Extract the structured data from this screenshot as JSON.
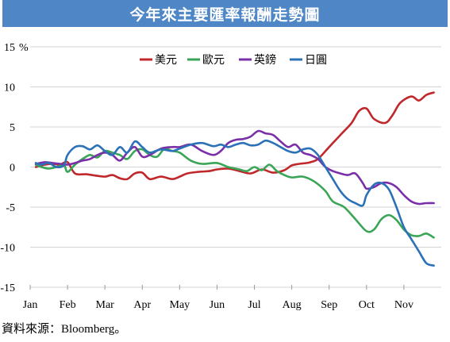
{
  "chart_data": {
    "type": "line",
    "title": "今年來主要匯率報酬走勢圖",
    "ylabel_unit": "%",
    "ylim": [
      -15,
      15
    ],
    "yticks": [
      15,
      10,
      5,
      0,
      -5,
      -10,
      -15
    ],
    "xlim": [
      0,
      11
    ],
    "categories": [
      "Jan",
      "Feb",
      "Mar",
      "Apr",
      "May",
      "Jun",
      "Jul",
      "Aug",
      "Sep",
      "Oct",
      "Nov"
    ],
    "grid": "horizontal",
    "legend_position": "top",
    "series": [
      {
        "name": "美元",
        "color": "#c0282c",
        "x": [
          0.15,
          0.4,
          0.6,
          0.8,
          1.0,
          1.2,
          1.5,
          1.8,
          2.0,
          2.2,
          2.4,
          2.6,
          2.8,
          3.0,
          3.2,
          3.5,
          3.8,
          4.0,
          4.2,
          4.5,
          4.8,
          5.0,
          5.3,
          5.6,
          5.9,
          6.2,
          6.5,
          6.8,
          7.0,
          7.2,
          7.4,
          7.5,
          7.7,
          8.0,
          8.3,
          8.6,
          8.8,
          9.0,
          9.2,
          9.5,
          9.7,
          9.9,
          10.2,
          10.4,
          10.6,
          10.8
        ],
        "values": [
          0.0,
          0.3,
          0.4,
          0.3,
          0.6,
          -0.8,
          -0.9,
          -1.1,
          -1.2,
          -1.0,
          -1.4,
          -1.5,
          -0.8,
          -0.7,
          -1.5,
          -1.2,
          -1.5,
          -1.2,
          -0.8,
          -0.6,
          -0.5,
          -0.3,
          -0.2,
          -0.5,
          -0.8,
          -0.3,
          -0.7,
          -0.4,
          0.2,
          0.4,
          0.5,
          0.6,
          1.0,
          2.5,
          4.0,
          5.5,
          7.0,
          7.3,
          6.0,
          5.5,
          6.5,
          8.0,
          8.8,
          8.3,
          9.0,
          9.3
        ]
      },
      {
        "name": "歐元",
        "color": "#3aa557",
        "x": [
          0.15,
          0.3,
          0.5,
          0.7,
          0.9,
          1.0,
          1.2,
          1.4,
          1.6,
          1.8,
          2.0,
          2.2,
          2.4,
          2.6,
          2.8,
          3.0,
          3.2,
          3.4,
          3.6,
          3.8,
          4.0,
          4.3,
          4.6,
          5.0,
          5.3,
          5.6,
          5.8,
          6.0,
          6.2,
          6.4,
          6.6,
          6.8,
          7.0,
          7.3,
          7.6,
          7.9,
          8.1,
          8.4,
          8.7,
          9.0,
          9.2,
          9.4,
          9.6,
          9.8,
          10.0,
          10.2,
          10.4,
          10.6,
          10.8
        ],
        "values": [
          0.3,
          0.0,
          -0.2,
          0.0,
          0.3,
          -0.6,
          0.3,
          1.0,
          1.5,
          1.2,
          2.0,
          1.8,
          1.5,
          1.0,
          2.0,
          2.2,
          1.5,
          1.3,
          2.3,
          2.0,
          1.8,
          0.8,
          0.4,
          0.5,
          0.0,
          -0.3,
          -0.5,
          0.0,
          -0.4,
          0.3,
          -0.5,
          -1.0,
          -1.3,
          -1.2,
          -1.8,
          -3.0,
          -4.3,
          -5.0,
          -6.5,
          -8.0,
          -7.8,
          -6.5,
          -6.0,
          -6.6,
          -7.8,
          -8.5,
          -8.6,
          -8.3,
          -8.8
        ]
      },
      {
        "name": "英鎊",
        "color": "#7a2fa8",
        "x": [
          0.15,
          0.4,
          0.6,
          0.8,
          1.0,
          1.2,
          1.4,
          1.6,
          1.8,
          2.0,
          2.2,
          2.4,
          2.6,
          2.8,
          3.0,
          3.2,
          3.5,
          3.8,
          4.0,
          4.3,
          4.6,
          4.9,
          5.1,
          5.3,
          5.5,
          5.7,
          5.9,
          6.1,
          6.3,
          6.5,
          6.7,
          6.9,
          7.1,
          7.3,
          7.5,
          7.7,
          7.9,
          8.1,
          8.3,
          8.5,
          8.7,
          8.9,
          9.0,
          9.2,
          9.4,
          9.6,
          9.8,
          10.0,
          10.2,
          10.4,
          10.6,
          10.8
        ],
        "values": [
          0.4,
          0.6,
          0.5,
          0.4,
          0.3,
          0.5,
          0.8,
          1.0,
          1.5,
          1.8,
          1.5,
          0.8,
          1.8,
          2.5,
          1.3,
          1.5,
          2.3,
          2.5,
          2.5,
          2.8,
          2.0,
          1.5,
          2.0,
          3.0,
          3.4,
          3.5,
          3.8,
          4.5,
          4.2,
          4.0,
          3.2,
          2.5,
          2.8,
          1.8,
          1.5,
          1.0,
          0.0,
          -0.5,
          -0.8,
          -1.0,
          -0.8,
          -2.0,
          -2.7,
          -2.5,
          -2.0,
          -2.0,
          -2.5,
          -3.5,
          -4.3,
          -4.6,
          -4.5,
          -4.5
        ]
      },
      {
        "name": "日圓",
        "color": "#2b71b8",
        "x": [
          0.15,
          0.3,
          0.5,
          0.7,
          0.9,
          1.0,
          1.2,
          1.4,
          1.6,
          1.8,
          2.0,
          2.2,
          2.4,
          2.6,
          2.8,
          3.0,
          3.2,
          3.5,
          3.8,
          4.0,
          4.3,
          4.6,
          4.9,
          5.1,
          5.3,
          5.5,
          5.7,
          5.9,
          6.1,
          6.3,
          6.5,
          6.7,
          6.9,
          7.1,
          7.3,
          7.5,
          7.7,
          7.9,
          8.1,
          8.3,
          8.5,
          8.7,
          8.9,
          9.0,
          9.2,
          9.4,
          9.6,
          9.8,
          10.0,
          10.2,
          10.4,
          10.6,
          10.8
        ],
        "values": [
          0.5,
          0.3,
          0.5,
          0.0,
          0.2,
          1.5,
          2.5,
          2.6,
          2.2,
          2.7,
          2.0,
          1.5,
          2.5,
          1.8,
          3.2,
          2.5,
          1.8,
          2.2,
          2.0,
          2.3,
          2.8,
          3.0,
          2.6,
          2.8,
          2.5,
          2.8,
          3.0,
          2.7,
          2.8,
          3.3,
          3.0,
          2.5,
          2.0,
          1.8,
          2.2,
          2.3,
          1.5,
          0.0,
          -1.5,
          -3.0,
          -4.0,
          -4.5,
          -4.8,
          -3.5,
          -2.2,
          -2.0,
          -2.8,
          -5.0,
          -7.5,
          -9.0,
          -10.5,
          -12.0,
          -12.3
        ]
      }
    ]
  },
  "source_note": "資料來源：Bloomberg。"
}
